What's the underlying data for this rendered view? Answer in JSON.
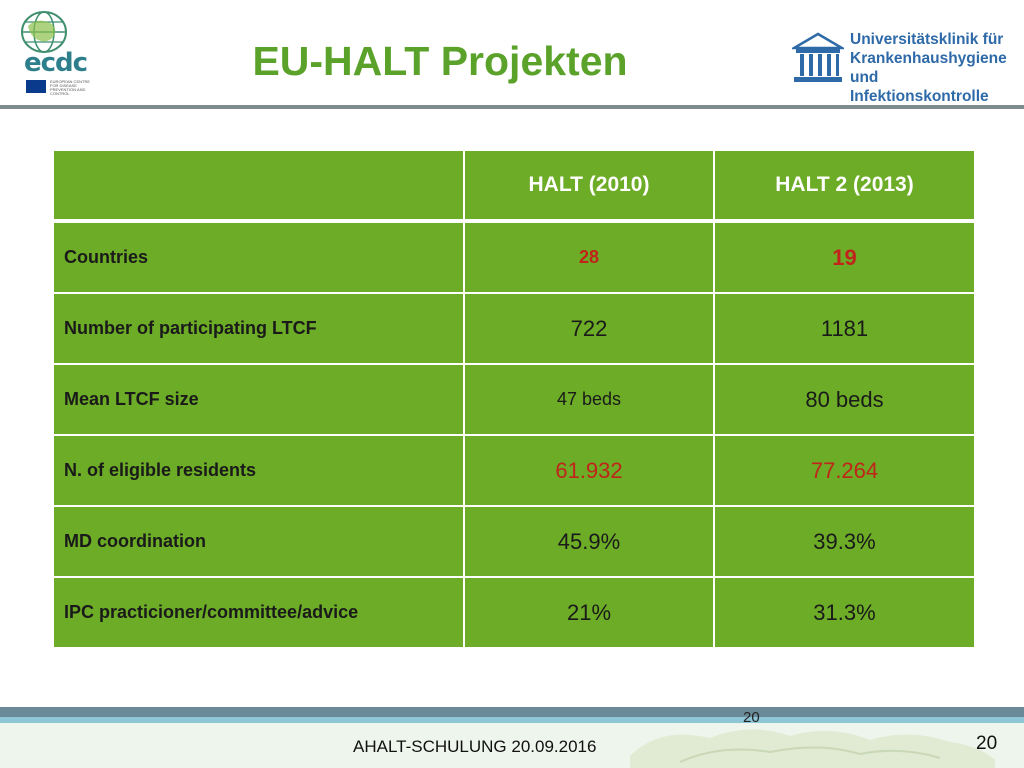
{
  "header": {
    "title": "EU-HALT Projekten",
    "left_logo": {
      "word": "ecdc",
      "tagline": "EUROPEAN CENTRE FOR DISEASE PREVENTION AND CONTROL",
      "icon": "globe-icon"
    },
    "right_logo": {
      "lines": [
        "Universitätsklinik für",
        "Krankenhaushygiene",
        "und Infektionskontrolle"
      ],
      "icon": "building-columns-icon"
    }
  },
  "table": {
    "headers": [
      "",
      "HALT  (2010)",
      "HALT 2 (2013)"
    ],
    "rows": [
      {
        "label": "Countries",
        "halt2010": "28",
        "halt2013": "19"
      },
      {
        "label": "Number of participating LTCF",
        "halt2010": "722",
        "halt2013": "1181"
      },
      {
        "label": "Mean LTCF size",
        "halt2010": "47 beds",
        "halt2013": "80 beds"
      },
      {
        "label": "N. of eligible residents",
        "halt2010": "61.932",
        "halt2013": "77.264"
      },
      {
        "label": "MD coordination",
        "halt2010": "45.9%",
        "halt2013": "39.3%"
      },
      {
        "label": "IPC practicioner/committee/advice",
        "halt2010": "21%",
        "halt2013": "31.3%"
      }
    ]
  },
  "footer": {
    "text": "AHALT-SCHULUNG 20.09.2016",
    "page_number": "20",
    "page_number_small": "20"
  },
  "colors": {
    "table_green": "#6cac26",
    "title_green": "#5aa22a",
    "highlight_red": "#c0241a",
    "logo_blue": "#2f6aa8"
  }
}
